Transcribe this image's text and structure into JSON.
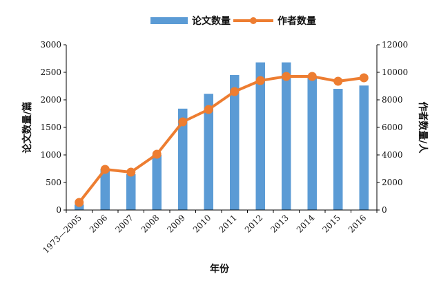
{
  "chart_data": {
    "type": "bar+line",
    "categories": [
      "1973—2005",
      "2006",
      "2007",
      "2008",
      "2009",
      "2010",
      "2011",
      "2012",
      "2013",
      "2014",
      "2015",
      "2016"
    ],
    "series": [
      {
        "name": "论文数量",
        "type": "bar",
        "axis": "left",
        "color": "#5b9bd5",
        "values": [
          100,
          750,
          650,
          1000,
          1840,
          2110,
          2450,
          2680,
          2680,
          2430,
          2200,
          2260
        ]
      },
      {
        "name": "作者数量",
        "type": "line",
        "axis": "right",
        "color": "#ed7d31",
        "values": [
          550,
          2950,
          2750,
          4050,
          6400,
          7300,
          8600,
          9400,
          9700,
          9700,
          9350,
          9600
        ]
      }
    ],
    "xlabel": "年份",
    "ylabel_left": "论文数量/篇",
    "ylabel_right": "作者数量/人",
    "ylim_left": [
      0,
      3000
    ],
    "ylim_right": [
      0,
      12000
    ],
    "yticks_left": [
      "0",
      "500",
      "1000",
      "1500",
      "2000",
      "2500",
      "3000"
    ],
    "yticks_right": [
      "0",
      "2000",
      "4000",
      "6000",
      "8000",
      "10000",
      "12000"
    ],
    "grid": false,
    "legend_position": "top-center"
  }
}
